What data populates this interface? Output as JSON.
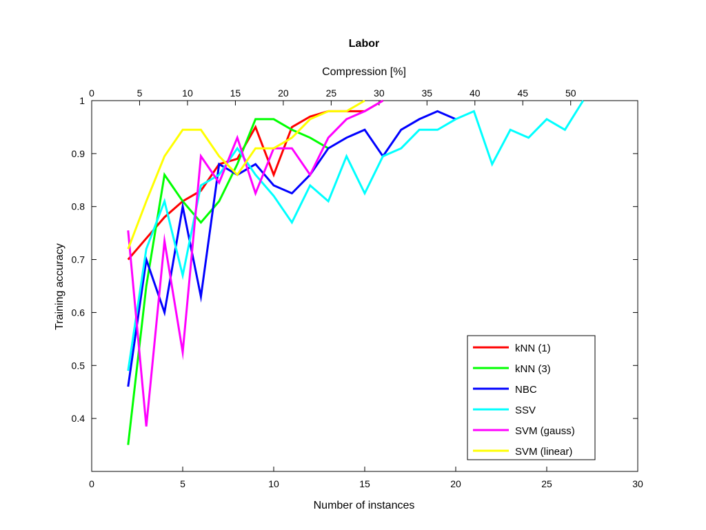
{
  "chart_data": {
    "type": "line",
    "title": "Labor",
    "xlabel": "Number of instances",
    "ylabel": "Training accuracy",
    "x2label": "Compression [%]",
    "xlim": [
      0,
      30
    ],
    "ylim": [
      0.3,
      1.0
    ],
    "x2lim": [
      0,
      57
    ],
    "xticks": [
      "0",
      "5",
      "10",
      "15",
      "20",
      "25",
      "30"
    ],
    "yticks": [
      "0.4",
      "0.5",
      "0.6",
      "0.7",
      "0.8",
      "0.9",
      "1"
    ],
    "x2ticks": [
      "0",
      "5",
      "10",
      "15",
      "20",
      "25",
      "30",
      "35",
      "40",
      "45",
      "50"
    ],
    "grid": false,
    "legend_position": "bottom-right",
    "series": [
      {
        "name": "kNN (1)",
        "color": "#ff0000",
        "x": [
          2,
          3,
          4,
          5,
          6,
          7,
          8,
          9,
          10,
          11,
          12,
          13,
          14,
          15,
          16
        ],
        "y": [
          0.7,
          0.74,
          0.78,
          0.81,
          0.83,
          0.88,
          0.89,
          0.95,
          0.86,
          0.95,
          0.97,
          0.98,
          0.98,
          0.98,
          1.0
        ]
      },
      {
        "name": "kNN (3)",
        "color": "#00ff00",
        "x": [
          2,
          3,
          4,
          5,
          6,
          7,
          8,
          9,
          10,
          11,
          12,
          13
        ],
        "y": [
          0.35,
          0.65,
          0.86,
          0.81,
          0.77,
          0.81,
          0.88,
          0.965,
          0.965,
          0.945,
          0.93,
          0.91
        ]
      },
      {
        "name": "NBC",
        "color": "#0000ff",
        "x": [
          2,
          3,
          4,
          5,
          6,
          7,
          8,
          9,
          10,
          11,
          12,
          13,
          14,
          15,
          16,
          17,
          18,
          19,
          20
        ],
        "y": [
          0.46,
          0.7,
          0.6,
          0.8,
          0.63,
          0.88,
          0.86,
          0.88,
          0.84,
          0.825,
          0.86,
          0.91,
          0.93,
          0.945,
          0.895,
          0.945,
          0.965,
          0.98,
          0.965
        ]
      },
      {
        "name": "SSV",
        "color": "#00ffff",
        "x": [
          2,
          3,
          4,
          5,
          6,
          7,
          8,
          9,
          10,
          11,
          12,
          13,
          14,
          15,
          16,
          17,
          18,
          19,
          20,
          21,
          22,
          23,
          24,
          25,
          26,
          27
        ],
        "y": [
          0.49,
          0.72,
          0.81,
          0.67,
          0.84,
          0.86,
          0.91,
          0.86,
          0.82,
          0.77,
          0.84,
          0.81,
          0.895,
          0.825,
          0.895,
          0.91,
          0.945,
          0.945,
          0.965,
          0.98,
          0.88,
          0.945,
          0.93,
          0.965,
          0.945,
          1.0
        ]
      },
      {
        "name": "SVM (gauss)",
        "color": "#ff00ff",
        "x": [
          2,
          3,
          4,
          5,
          6,
          7,
          8,
          9,
          10,
          11,
          12,
          13,
          14,
          15,
          16
        ],
        "y": [
          0.755,
          0.385,
          0.735,
          0.525,
          0.895,
          0.845,
          0.93,
          0.825,
          0.91,
          0.91,
          0.86,
          0.93,
          0.965,
          0.98,
          1.0
        ]
      },
      {
        "name": "SVM (linear)",
        "color": "#ffff00",
        "x": [
          2,
          3,
          4,
          5,
          6,
          7,
          8,
          9,
          10,
          11,
          12,
          13,
          14,
          15
        ],
        "y": [
          0.72,
          0.81,
          0.895,
          0.945,
          0.945,
          0.895,
          0.86,
          0.91,
          0.91,
          0.93,
          0.965,
          0.98,
          0.98,
          1.0
        ]
      }
    ]
  }
}
